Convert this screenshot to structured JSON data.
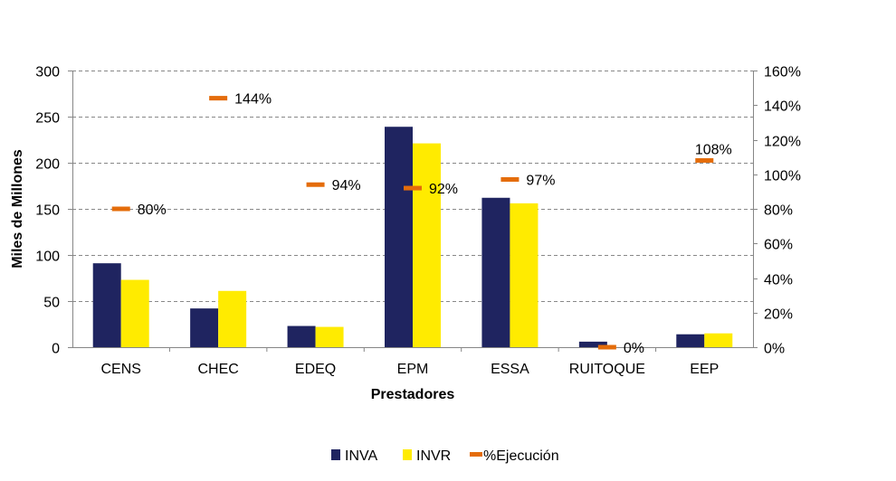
{
  "chart_data": {
    "type": "bar",
    "title": "",
    "xlabel": "Prestadores",
    "ylabel": "Miles de Millones",
    "categories": [
      "CENS",
      "CHEC",
      "EDEQ",
      "EPM",
      "ESSA",
      "RUITOQUE",
      "EEP"
    ],
    "ylim": [
      0,
      300
    ],
    "yticks": [
      "0",
      "50",
      "100",
      "150",
      "200",
      "250",
      "300"
    ],
    "y2lim": [
      0,
      160
    ],
    "y2ticks": [
      "0%",
      "20%",
      "40%",
      "60%",
      "80%",
      "100%",
      "120%",
      "140%",
      "160%"
    ],
    "grid": true,
    "legend_position": "bottom",
    "series": [
      {
        "name": "INVA",
        "type": "bar",
        "color": "#1F2460",
        "values": [
          91,
          42,
          23,
          239,
          162,
          6,
          14
        ]
      },
      {
        "name": "INVR",
        "type": "bar",
        "color": "#FFEB00",
        "values": [
          73,
          61,
          22,
          221,
          156,
          0,
          15
        ]
      },
      {
        "name": "%Ejecución",
        "type": "marker",
        "axis": "secondary",
        "color": "#E46C0A",
        "values": [
          80,
          144,
          94,
          92,
          97,
          0,
          108
        ],
        "labels": [
          "80%",
          "144%",
          "94%",
          "92%",
          "97%",
          "0%",
          "108%"
        ]
      }
    ]
  }
}
